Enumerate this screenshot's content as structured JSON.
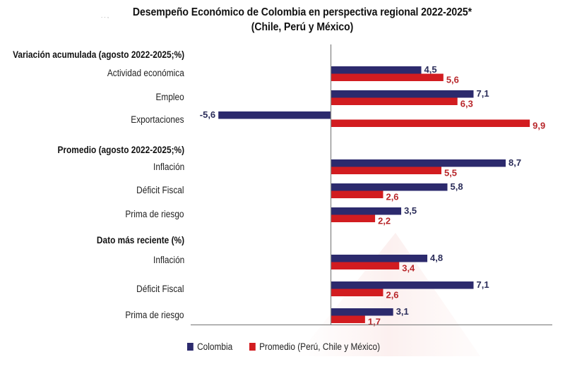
{
  "stray_mark": ". . ,",
  "chart_data": {
    "type": "bar",
    "orientation": "horizontal",
    "title": "Desempeño Económico de Colombia en perspectiva regional 2022-2025*",
    "subtitle": "(Chile, Perú y México)",
    "xlabel": "",
    "ylabel": "",
    "xlim": [
      -5.6,
      9.9
    ],
    "grid": false,
    "legend_position": "bottom-left",
    "decimal_separator": ",",
    "colors": {
      "Colombia": "#2c2a6d",
      "Promedio": "#d21c20",
      "label_colombia": "#2b2d5a",
      "label_promedio": "#b8262a"
    },
    "sections": [
      {
        "label": "Variación acumulada (agosto 2022-2025;%)",
        "categories": [
          "Actividad económica",
          "Empleo",
          "Exportaciones"
        ],
        "series": [
          {
            "name": "Colombia",
            "values": [
              4.5,
              7.1,
              -5.6
            ]
          },
          {
            "name": "Promedio (Perú, Chile y México)",
            "values": [
              5.6,
              6.3,
              9.9
            ]
          }
        ]
      },
      {
        "label": "Promedio (agosto 2022-2025;%)",
        "categories": [
          "Inflación",
          "Déficit Fiscal",
          "Prima de riesgo"
        ],
        "series": [
          {
            "name": "Colombia",
            "values": [
              8.7,
              5.8,
              3.5
            ]
          },
          {
            "name": "Promedio (Perú, Chile y México)",
            "values": [
              5.5,
              2.6,
              2.2
            ]
          }
        ]
      },
      {
        "label": "Dato más reciente (%)",
        "categories": [
          "Inflación",
          "Déficit Fiscal",
          "Prima de riesgo"
        ],
        "series": [
          {
            "name": "Colombia",
            "values": [
              4.8,
              7.1,
              3.1
            ]
          },
          {
            "name": "Promedio (Perú, Chile y México)",
            "values": [
              3.4,
              2.6,
              1.7
            ]
          }
        ]
      }
    ],
    "legend": [
      "Colombia",
      "Promedio (Perú, Chile y México)"
    ]
  }
}
